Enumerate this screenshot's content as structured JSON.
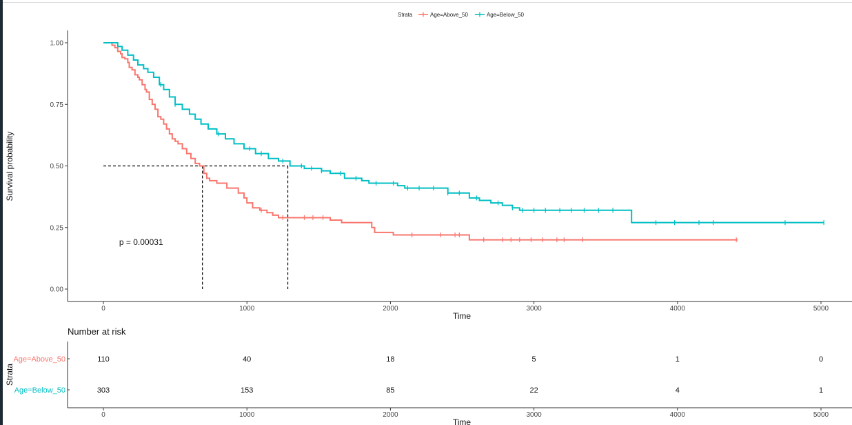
{
  "chart_data": {
    "type": "line",
    "subtype": "kaplan-meier",
    "legend_placement": "top",
    "legend": {
      "title": "Strata"
    },
    "xlabel": "Time",
    "ylabel": "Survival probability",
    "xlim": [
      -250,
      5200
    ],
    "ylim": [
      -0.05,
      1.05
    ],
    "x_ticks": [
      0,
      1000,
      2000,
      3000,
      4000,
      5000
    ],
    "y_ticks": [
      0,
      0.25,
      0.5,
      0.75,
      1.0
    ],
    "y_tick_labels": [
      "0.00",
      "0.25",
      "0.50",
      "0.75",
      "1.00"
    ],
    "grid": false,
    "p_value_text": "p = 0.00031",
    "p_value_pos": [
      110,
      0.19
    ],
    "median_line_y": 0.5,
    "medians": [
      690,
      1285
    ],
    "series": [
      {
        "name": "Age=Above_50",
        "color": "#F8766D",
        "points": [
          [
            0,
            1.0
          ],
          [
            50,
            1.0
          ],
          [
            60,
            0.99
          ],
          [
            80,
            0.98
          ],
          [
            100,
            0.965
          ],
          [
            120,
            0.955
          ],
          [
            130,
            0.94
          ],
          [
            150,
            0.935
          ],
          [
            170,
            0.92
          ],
          [
            180,
            0.9
          ],
          [
            200,
            0.89
          ],
          [
            220,
            0.87
          ],
          [
            240,
            0.86
          ],
          [
            250,
            0.85
          ],
          [
            270,
            0.83
          ],
          [
            290,
            0.81
          ],
          [
            300,
            0.8
          ],
          [
            320,
            0.77
          ],
          [
            340,
            0.75
          ],
          [
            360,
            0.73
          ],
          [
            380,
            0.7
          ],
          [
            400,
            0.69
          ],
          [
            420,
            0.67
          ],
          [
            440,
            0.65
          ],
          [
            460,
            0.63
          ],
          [
            480,
            0.61
          ],
          [
            500,
            0.6
          ],
          [
            520,
            0.59
          ],
          [
            550,
            0.57
          ],
          [
            580,
            0.55
          ],
          [
            610,
            0.53
          ],
          [
            640,
            0.51
          ],
          [
            670,
            0.5
          ],
          [
            690,
            0.5
          ],
          [
            700,
            0.47
          ],
          [
            720,
            0.45
          ],
          [
            740,
            0.44
          ],
          [
            790,
            0.43
          ],
          [
            860,
            0.41
          ],
          [
            940,
            0.39
          ],
          [
            980,
            0.37
          ],
          [
            1000,
            0.35
          ],
          [
            1040,
            0.33
          ],
          [
            1090,
            0.32
          ],
          [
            1140,
            0.31
          ],
          [
            1180,
            0.3
          ],
          [
            1220,
            0.29
          ],
          [
            1580,
            0.28
          ],
          [
            1660,
            0.27
          ],
          [
            1870,
            0.25
          ],
          [
            1890,
            0.23
          ],
          [
            2020,
            0.22
          ],
          [
            2550,
            0.2
          ],
          [
            4420,
            0.2
          ]
        ],
        "censor_times": [
          1100,
          1250,
          1400,
          1460,
          1530,
          2150,
          2350,
          2450,
          2480,
          2650,
          2780,
          2840,
          2900,
          2980,
          3060,
          3160,
          3210,
          3340,
          4410
        ]
      },
      {
        "name": "Age=Below_50",
        "color": "#00BFC4",
        "points": [
          [
            0,
            1.0
          ],
          [
            80,
            1.0
          ],
          [
            100,
            0.985
          ],
          [
            130,
            0.97
          ],
          [
            170,
            0.95
          ],
          [
            210,
            0.93
          ],
          [
            240,
            0.91
          ],
          [
            280,
            0.895
          ],
          [
            310,
            0.88
          ],
          [
            350,
            0.86
          ],
          [
            390,
            0.83
          ],
          [
            420,
            0.81
          ],
          [
            460,
            0.78
          ],
          [
            500,
            0.75
          ],
          [
            550,
            0.73
          ],
          [
            600,
            0.71
          ],
          [
            640,
            0.69
          ],
          [
            680,
            0.67
          ],
          [
            730,
            0.65
          ],
          [
            790,
            0.63
          ],
          [
            850,
            0.61
          ],
          [
            910,
            0.59
          ],
          [
            980,
            0.57
          ],
          [
            1060,
            0.55
          ],
          [
            1150,
            0.53
          ],
          [
            1220,
            0.52
          ],
          [
            1300,
            0.5
          ],
          [
            1400,
            0.49
          ],
          [
            1520,
            0.48
          ],
          [
            1580,
            0.47
          ],
          [
            1680,
            0.45
          ],
          [
            1800,
            0.44
          ],
          [
            1850,
            0.43
          ],
          [
            2050,
            0.42
          ],
          [
            2100,
            0.41
          ],
          [
            2400,
            0.39
          ],
          [
            2550,
            0.37
          ],
          [
            2620,
            0.36
          ],
          [
            2700,
            0.35
          ],
          [
            2780,
            0.34
          ],
          [
            2850,
            0.33
          ],
          [
            2900,
            0.32
          ],
          [
            3680,
            0.32
          ],
          [
            3680,
            0.27
          ],
          [
            5020,
            0.27
          ]
        ],
        "censor_times": [
          400,
          500,
          800,
          1020,
          1100,
          1250,
          1380,
          1450,
          1520,
          1650,
          1760,
          1900,
          2020,
          2120,
          2200,
          2300,
          2400,
          2480,
          2600,
          2750,
          2850,
          2920,
          3000,
          3080,
          3180,
          3260,
          3350,
          3450,
          3550,
          3850,
          3980,
          4150,
          4250,
          4750,
          5020
        ]
      }
    ],
    "risk_table": {
      "title": "Number at risk",
      "ylabel": "Strata",
      "xlabel": "Time",
      "times": [
        0,
        1000,
        2000,
        3000,
        4000,
        5000
      ],
      "rows": [
        {
          "label": "Age=Above_50",
          "color": "#F8766D",
          "values": [
            "110",
            "40",
            "18",
            "5",
            "1",
            "0"
          ]
        },
        {
          "label": "Age=Below_50",
          "color": "#00BFC4",
          "values": [
            "303",
            "153",
            "85",
            "22",
            "4",
            "1"
          ]
        }
      ]
    }
  }
}
